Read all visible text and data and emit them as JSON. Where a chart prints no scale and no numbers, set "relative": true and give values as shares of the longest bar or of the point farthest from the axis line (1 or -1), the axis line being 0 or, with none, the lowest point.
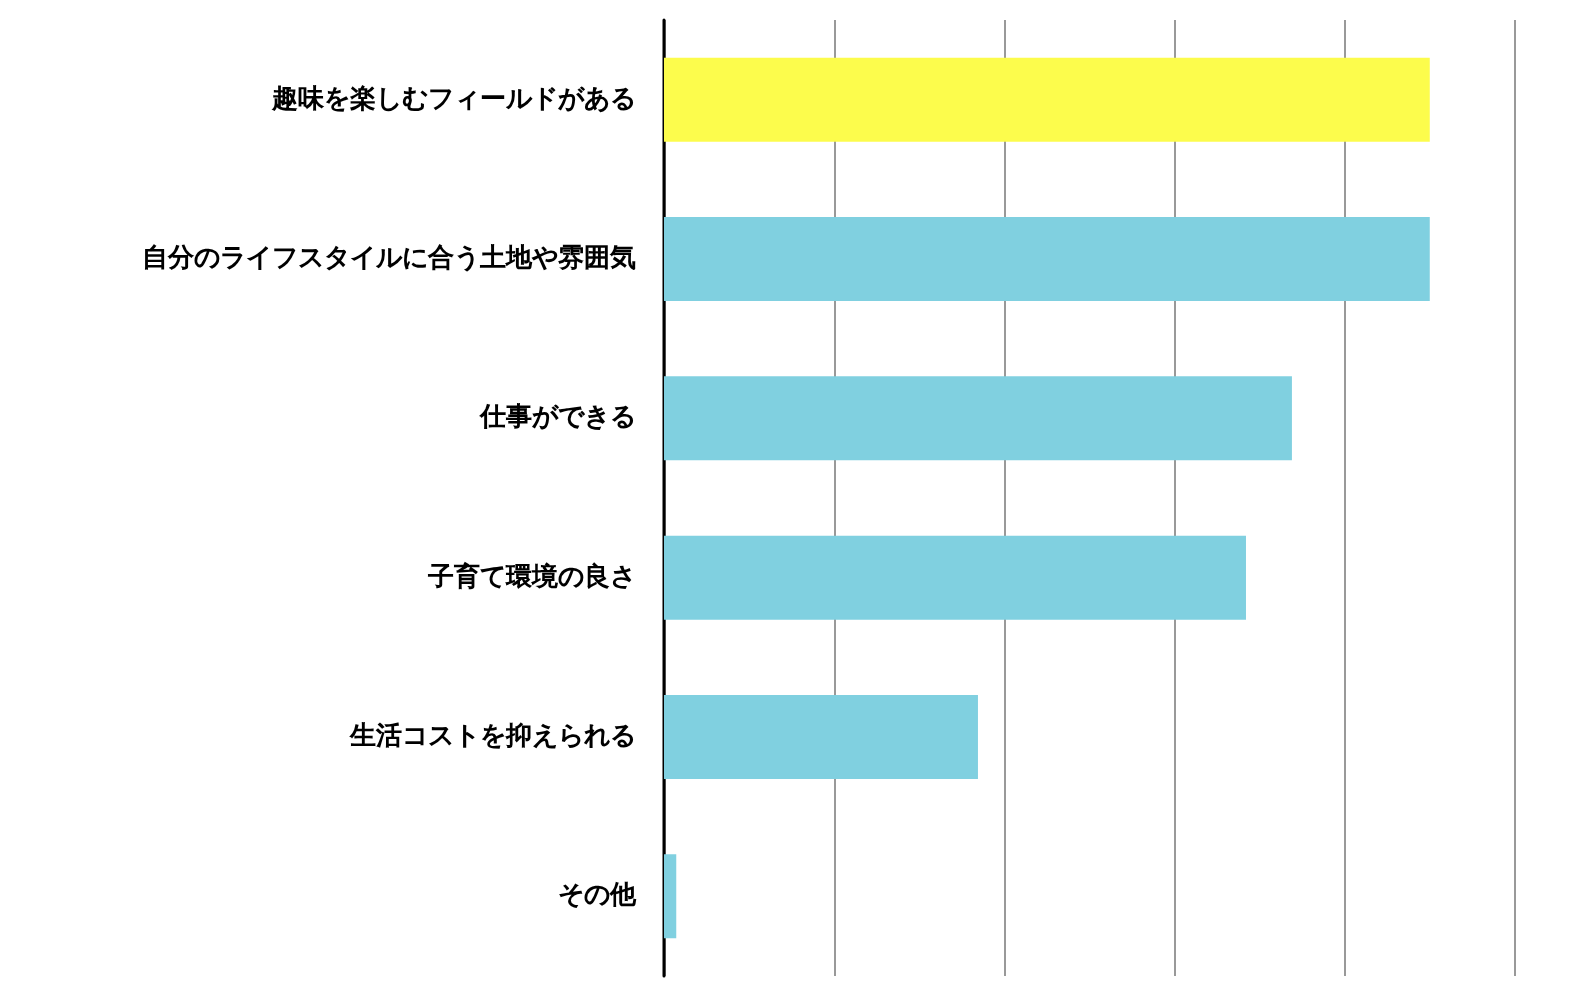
{
  "chart_data": {
    "type": "bar",
    "orientation": "horizontal",
    "relative": true,
    "grid": "x",
    "categories": [
      "趣味を楽しむフィールドがある",
      "自分のライフスタイルに合う土地や雰囲気",
      "仕事ができる",
      "子育て環境の良さ",
      "生活コストを抑えられる",
      "その他"
    ],
    "values": [
      1,
      1,
      0.82,
      0.76,
      0.41,
      0.016
    ],
    "colors": [
      "#fcfc4c",
      "#80d0e0",
      "#80d0e0",
      "#80d0e0",
      "#80d0e0",
      "#80d0e0"
    ]
  }
}
